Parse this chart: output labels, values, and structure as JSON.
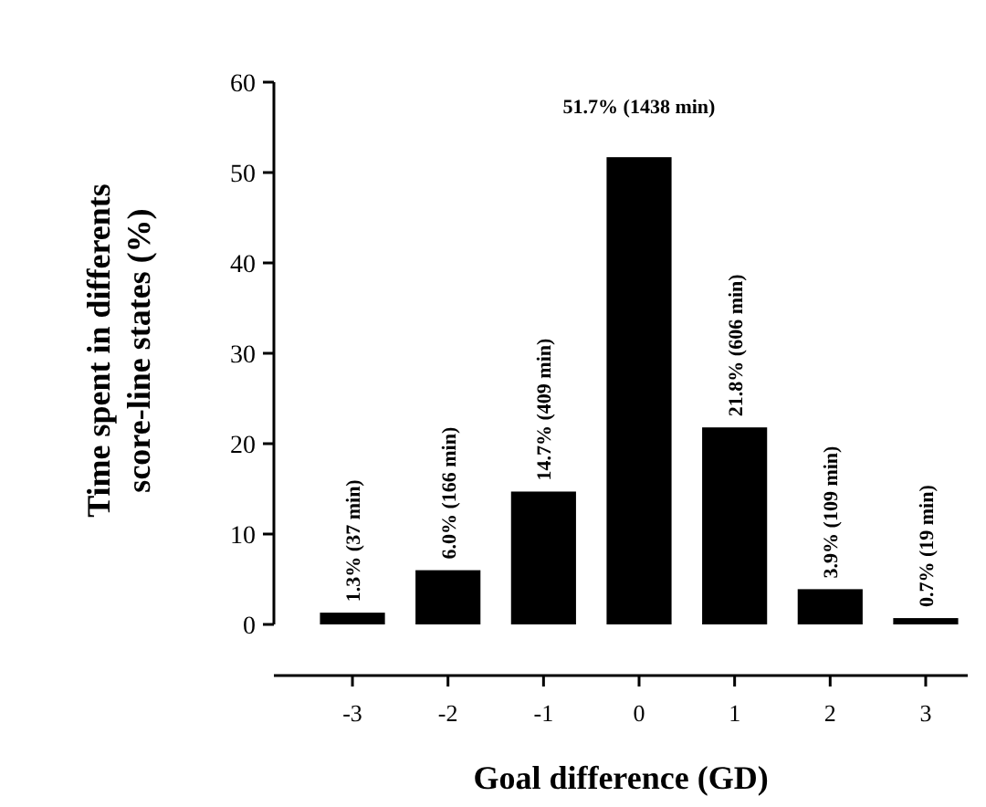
{
  "chart_data": {
    "type": "bar",
    "xlabel": "Goal difference  (GD)",
    "ylabel": "Time spent in differents\nscore-line states  (%)",
    "categories": [
      "-3",
      "-2",
      "-1",
      "0",
      "1",
      "2",
      "3"
    ],
    "values": [
      1.3,
      6.0,
      14.7,
      51.7,
      21.8,
      3.9,
      0.7
    ],
    "value_labels": [
      "1.3% (37 min)",
      "6.0% (166 min)",
      "14.7% (409 min)",
      "51.7% (1438 min)",
      "21.8% (606 min)",
      "3.9% (109 min)",
      "0.7% (19 min)"
    ],
    "color": "#000000",
    "ylim": [
      0,
      60
    ],
    "yticks": [
      0,
      10,
      20,
      30,
      40,
      50,
      60
    ],
    "grid": false
  }
}
